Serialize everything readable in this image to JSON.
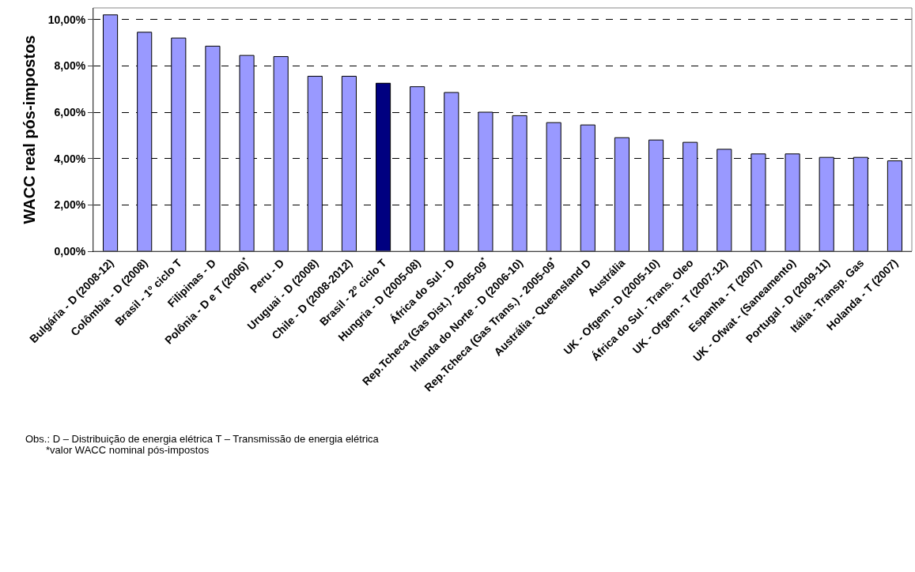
{
  "chart_data": {
    "type": "bar",
    "ylabel": "WACC real pós-impostos",
    "categories": [
      "Bulgária - D (2008-12)",
      "Colômbia - D (2008)",
      "Brasil - 1º ciclo T",
      "Filipinas - D",
      "Polônia - D e T (2006)$^{*}$",
      "Peru - D",
      "Uruguai - D (2008)",
      "Chile - D (2008-2012)",
      "Brasil - 2º ciclo T",
      "Hungria - D (2005-08)",
      "África do Sul - D",
      "Rep.Tcheca (Gas Dist.) - 2005-09$^{*}$",
      "Irlanda do Norte - D (2006-10)",
      "Rep.Tcheca (Gas Trans.) - 2005-09$^{*}$",
      "Austrália - Queensland D",
      "Austrália",
      "UK - Ofgem - D (2005-10)",
      "África do Sul - Trans. Oleo",
      "UK - Ofgem - T (2007-12)",
      "Espanha - T (2007)",
      "UK - Ofwat - (Saneamento)",
      "Portugal - D (2009-11)",
      "Itália - Transp. Gas",
      "Holanda - T (2007)"
    ],
    "values": [
      10.2,
      9.45,
      9.2,
      8.85,
      8.45,
      8.4,
      7.55,
      7.55,
      7.25,
      7.1,
      6.85,
      6.0,
      5.85,
      5.55,
      5.45,
      4.9,
      4.8,
      4.7,
      4.4,
      4.2,
      4.2,
      4.05,
      4.05,
      3.9
    ],
    "colors": [
      "#9999ff",
      "#9999ff",
      "#9999ff",
      "#9999ff",
      "#9999ff",
      "#9999ff",
      "#9999ff",
      "#9999ff",
      "#000080",
      "#9999ff",
      "#9999ff",
      "#9999ff",
      "#9999ff",
      "#9999ff",
      "#9999ff",
      "#9999ff",
      "#9999ff",
      "#9999ff",
      "#9999ff",
      "#9999ff",
      "#9999ff",
      "#9999ff",
      "#9999ff",
      "#9999ff"
    ],
    "ylim": [
      0,
      10.5
    ],
    "yticks": [
      {
        "value": 0,
        "label": "0,00%"
      },
      {
        "value": 2,
        "label": "2,00%"
      },
      {
        "value": 4,
        "label": "4,00%"
      },
      {
        "value": 6,
        "label": "6,00%"
      },
      {
        "value": 8,
        "label": "8,00%"
      },
      {
        "value": 10,
        "label": "10,00%"
      }
    ],
    "grid": "y",
    "annotations": [
      "Obs.: D – Distribuição de energia elétrica T – Transmissão de energia elétrica",
      "*valor WACC nominal pós-impostos"
    ]
  }
}
